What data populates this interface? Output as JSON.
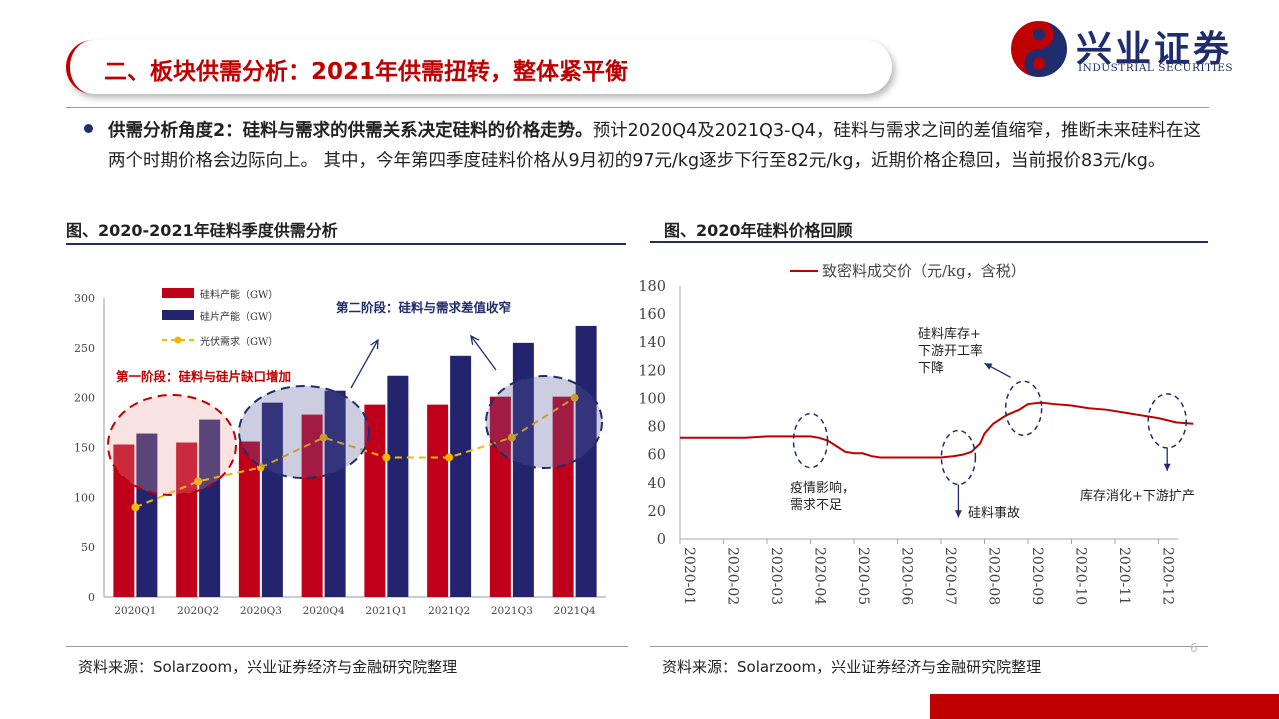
{
  "header": {
    "title": "二、板块供需分析：2021年供需扭转，整体紧平衡",
    "logo_cn": "兴业证券",
    "logo_en": "INDUSTRIAL SECURITIES"
  },
  "summary": {
    "lead": "供需分析角度2：硅料与需求的供需关系决定硅料的价格走势。",
    "body": "预计2020Q4及2021Q3-Q4，硅料与需求之间的差值缩窄，推断未来硅料在这两个时期价格会边际向上。 其中，今年第四季度硅料价格从9月初的97元/kg逐步下行至82元/kg，近期价格企稳回，当前报价83元/kg。"
  },
  "left_section": {
    "title": "图、2020-2021年硅料季度供需分析",
    "source": "资料来源：Solarzoom，兴业证券经济与金融研究院整理"
  },
  "right_section": {
    "title": "图、2020年硅料价格回顾",
    "source": "资料来源：Solarzoom，兴业证券经济与金融研究院整理"
  },
  "page_number": "6",
  "colors": {
    "brand_red": "#c00000",
    "brand_navy": "#1f2d6e",
    "bar_red": "#c0001a",
    "bar_navy": "#24246e",
    "line_gold": "#f5b800",
    "price_line": "#c00000"
  },
  "chart_data": [
    {
      "type": "bar",
      "categories": [
        "2020Q1",
        "2020Q2",
        "2020Q3",
        "2020Q4",
        "2021Q1",
        "2021Q2",
        "2021Q3",
        "2021Q4"
      ],
      "series": [
        {
          "name": "硅料产能（GW）",
          "type": "bar",
          "values": [
            153,
            155,
            156,
            183,
            193,
            193,
            201,
            201
          ]
        },
        {
          "name": "硅片产能（GW）",
          "type": "bar",
          "values": [
            164,
            178,
            195,
            207,
            222,
            242,
            255,
            272
          ]
        },
        {
          "name": "光伏需求（GW）",
          "type": "line",
          "style": "dashed",
          "values": [
            90,
            116,
            130,
            160,
            140,
            140,
            160,
            200
          ]
        }
      ],
      "ylim": [
        0,
        300
      ],
      "yticks": [
        0,
        50,
        100,
        150,
        200,
        250,
        300
      ],
      "legend_position": "top-left",
      "grid": false,
      "annotations": [
        {
          "text": "第一阶段：硅料与硅片缺口增加",
          "color": "#c00000"
        },
        {
          "text": "第二阶段：硅料与需求差值收窄",
          "color": "#1f2d6e"
        }
      ]
    },
    {
      "type": "line",
      "series": [
        {
          "name": "致密料成交价（元/kg，含税）",
          "x": [
            0,
            0.5,
            1,
            1.5,
            2,
            2.5,
            3,
            3.2,
            3.4,
            3.6,
            3.8,
            4,
            4.2,
            4.4,
            4.6,
            5,
            5.5,
            6,
            6.3,
            6.5,
            6.7,
            6.9,
            7,
            7.2,
            7.5,
            7.8,
            8,
            8.3,
            8.6,
            9,
            9.4,
            9.8,
            10.2,
            10.6,
            11,
            11.4,
            11.8
          ],
          "values": [
            72,
            72,
            72,
            72,
            73,
            73,
            73,
            72,
            70,
            66,
            62,
            61,
            61,
            59,
            58,
            58,
            58,
            58,
            59,
            60,
            62,
            68,
            75,
            82,
            88,
            92,
            96,
            97,
            96,
            95,
            93,
            92,
            90,
            88,
            86,
            83,
            82
          ]
        }
      ],
      "x_categories": [
        "2020-01",
        "2020-02",
        "2020-03",
        "2020-04",
        "2020-05",
        "2020-06",
        "2020-07",
        "2020-08",
        "2020-09",
        "2020-10",
        "2020-11",
        "2020-12"
      ],
      "ylim": [
        0,
        180
      ],
      "yticks": [
        0,
        20,
        40,
        60,
        80,
        100,
        120,
        140,
        160,
        180
      ],
      "legend_position": "top",
      "grid": false,
      "annotations": [
        {
          "text_lines": [
            "硅料库存+",
            "下游开工率",
            "下降"
          ]
        },
        {
          "text_lines": [
            "疫情影响，",
            "需求不足"
          ]
        },
        {
          "text_lines": [
            "硅料事故"
          ]
        },
        {
          "text_lines": [
            "库存消化+下游扩产"
          ]
        }
      ]
    }
  ]
}
